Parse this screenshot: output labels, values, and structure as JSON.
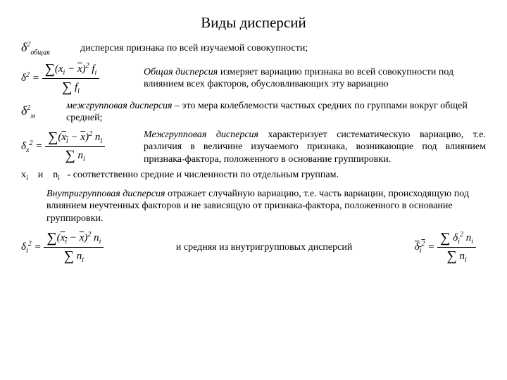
{
  "title": "Виды дисперсий",
  "line1": {
    "symbol_html": "δ<span class='sup'>2</span><span class='sub'>общая</span>",
    "desc": "дисперсия признака по всей изучаемой совокупности;"
  },
  "line2": {
    "formula_html": "δ<span class='sup'>2</span> = <span class='frac'><span class='num'><span class='sum'>∑</span>(x<span class='sub'>i</span> − <span class='ovl'>x</span>)<span class='sup'>2</span> f<span class='sub'>i</span></span><span class='den'><span class='sum'>∑</span> f<span class='sub'>i</span></span></span>",
    "desc_html": "<span class='italic'>Общая дисперсия</span> измеряет вариацию признака во всей совокупности под влиянием всех факторов, обусловливающих эту вариацию"
  },
  "line3": {
    "symbol_html": "δ<span class='sup'>2</span><span class='sub'>м</span>",
    "desc_html": "<span class='italic'>межгрупповая дисперсия</span> – это мера колеблемости частных средних по группами вокруг общей средней;"
  },
  "line4": {
    "formula_html": "δ<span class='sub'>x</span><span class='sup'>2</span> = <span class='frac'><span class='num'><span class='sum'>∑</span>(<span class='ovl'>x<span class='sub'>i</span></span> − <span class='ovl'>x</span>)<span class='sup'>2</span> n<span class='sub'>i</span></span><span class='den'><span class='sum'>∑</span> n<span class='sub'>i</span></span></span>",
    "desc_html": "<span class='italic'>Межгрупповая дисперсия</span> характеризует систематическую вариацию, т.е. различия в величине изучаемого признака, возникающие под влиянием признака-фактора, положенного в основание группировки."
  },
  "note1": "x<span class='sub'>i</span> &nbsp;&nbsp; и &nbsp;&nbsp; n<span class='sub'>i</span> &nbsp; - соответственно средние и численности по отдельным группам.",
  "line5": {
    "desc_html": "<span class='italic'>Внутригрупповая дисперсия</span> отражает случайную вариацию, т.е. часть вариации, происходящую под влиянием неучтенных факторов и не зависящую от признака-фактора, положенного в основание группировки."
  },
  "line6": {
    "formula_left_html": "δ<span class='sub'>i</span><span class='sup'>2</span> = <span class='frac'><span class='num'><span class='sum'>∑</span>(<span class='ovl'>x<span class='sub'>i</span></span> − <span class='ovl'>x</span>)<span class='sup'>2</span> n<span class='sub'>i</span></span><span class='den'><span class='sum'>∑</span> n<span class='sub'>i</span></span></span>",
    "mid_text": "и средняя из внутригрупповых дисперсий",
    "formula_right_html": "<span class='ovl'>δ<span class='sub'>i</span><span class='sup'>2</span></span> = <span class='frac'><span class='num'><span class='sum'>∑</span> δ<span class='sub'>i</span><span class='sup'>2</span> n<span class='sub'>i</span></span><span class='den'><span class='sum'>∑</span> n<span class='sub'>i</span></span></span>"
  }
}
